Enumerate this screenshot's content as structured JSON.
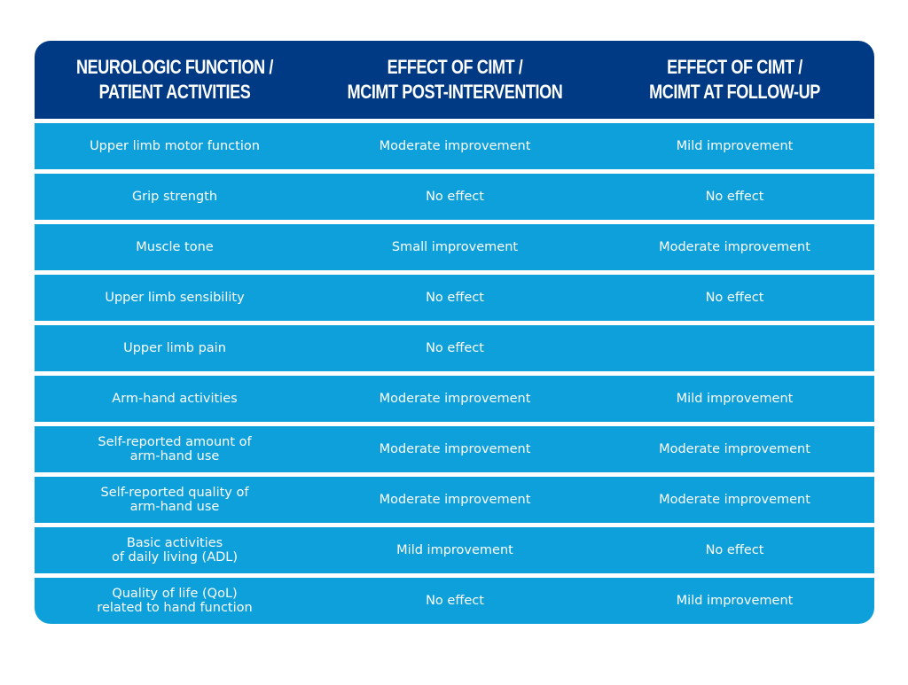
{
  "header": {
    "col0": "NEUROLOGIC FUNCTION /\nPATIENT ACTIVITIES",
    "col1": "EFFECT OF CIMT /\nMCIMT POST-INTERVENTION",
    "col2": "EFFECT OF CIMT /\nMCIMT AT FOLLOW-UP"
  },
  "rows": [
    {
      "function": "Upper limb motor function",
      "post": "Moderate improvement",
      "followup": "Mild improvement"
    },
    {
      "function": "Grip strength",
      "post": "No effect",
      "followup": "No effect"
    },
    {
      "function": "Muscle tone",
      "post": "Small improvement",
      "followup": "Moderate improvement"
    },
    {
      "function": "Upper limb sensibility",
      "post": "No effect",
      "followup": "No effect"
    },
    {
      "function": "Upper limb pain",
      "post": "No effect",
      "followup": ""
    },
    {
      "function": "Arm-hand activities",
      "post": "Moderate improvement",
      "followup": "Mild improvement"
    },
    {
      "function": "Self-reported amount of\narm-hand use",
      "post": "Moderate improvement",
      "followup": "Moderate improvement"
    },
    {
      "function": "Self-reported quality of\narm-hand use",
      "post": "Moderate improvement",
      "followup": "Moderate improvement"
    },
    {
      "function": "Basic activities\nof daily living (ADL)",
      "post": "Mild improvement",
      "followup": "No effect"
    },
    {
      "function": "Quality of life (QoL)\nrelated to hand function",
      "post": "No effect",
      "followup": "Mild improvement"
    }
  ],
  "colors": {
    "header_bg": "#013a84",
    "row_bg": "#0ea0da",
    "text": "#ffffff"
  }
}
